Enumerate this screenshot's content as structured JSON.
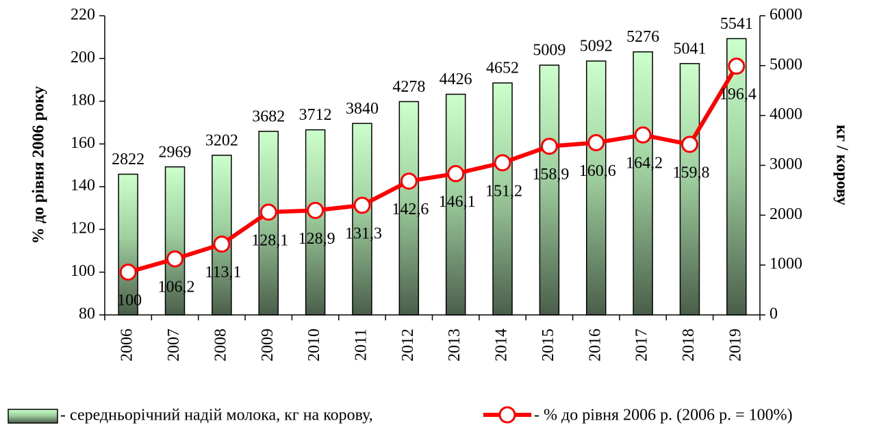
{
  "chart_data": {
    "type": "bar_line",
    "categories": [
      "2006",
      "2007",
      "2008",
      "2009",
      "2010",
      "2011",
      "2012",
      "2013",
      "2014",
      "2015",
      "2016",
      "2017",
      "2018",
      "2019"
    ],
    "ylabel": "% до рівня 2006 року",
    "y2label": "кг / корову",
    "ylim": [
      80,
      220
    ],
    "yticks": [
      80,
      100,
      120,
      140,
      160,
      180,
      200,
      220
    ],
    "y2lim": [
      0,
      6000
    ],
    "y2ticks": [
      0,
      1000,
      2000,
      3000,
      4000,
      5000,
      6000
    ],
    "series": [
      {
        "name": "- середньорічний надій молока, кг на корову,",
        "type": "bar",
        "axis": "y2",
        "color": "#c8f7c8",
        "values": [
          2822,
          2969,
          3202,
          3682,
          3712,
          3840,
          4278,
          4426,
          4652,
          5009,
          5092,
          5276,
          5041,
          5541
        ]
      },
      {
        "name": "- % до рівня 2006 р. (2006 р. = 100%)",
        "type": "line",
        "axis": "y",
        "color": "#ff0000",
        "values": [
          100,
          106.2,
          113.1,
          128.1,
          128.9,
          131.3,
          142.6,
          146.1,
          151.2,
          158.9,
          160.6,
          164.2,
          159.8,
          196.4
        ],
        "value_labels": [
          "100",
          "106,2",
          "113,1",
          "128,1",
          "128,9",
          "131,3",
          "142,6",
          "146,1",
          "151,2",
          "158,9",
          "160,6",
          "164,2",
          "159,8",
          "196,4"
        ]
      }
    ]
  }
}
